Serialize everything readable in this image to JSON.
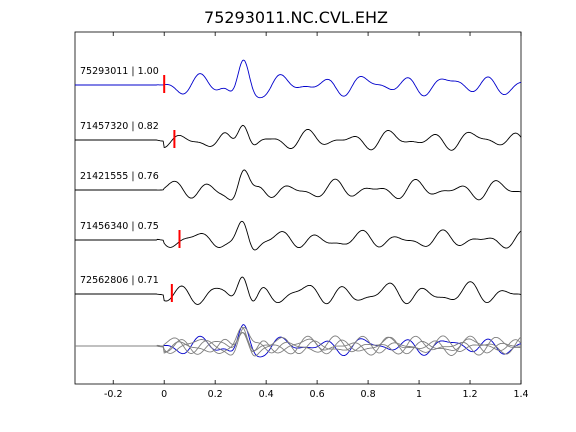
{
  "chart_data": {
    "type": "line",
    "title": "75293011.NC.CVL.EHZ",
    "xlabel": "",
    "ylabel": "",
    "xlim": [
      -0.35,
      1.4
    ],
    "xticks": [
      "-0.2",
      "0",
      "0.2",
      "0.4",
      "0.6",
      "0.8",
      "1",
      "1.2",
      "1.4"
    ],
    "xtick_values": [
      -0.2,
      0,
      0.2,
      0.4,
      0.6,
      0.8,
      1.0,
      1.2,
      1.4
    ],
    "grid": false,
    "colors": {
      "reference": "#0000cc",
      "trace": "#000000",
      "overlay": "#808080",
      "pick": "#ff0000"
    },
    "traces": [
      {
        "label": "75293011 | 1.00",
        "color": "#0000cc",
        "pick": 0.0
      },
      {
        "label": "71457320 | 0.82",
        "color": "#000000",
        "pick": 0.04
      },
      {
        "label": "21421555 | 0.76",
        "color": "#000000",
        "pick": null
      },
      {
        "label": "71456340 | 0.75",
        "color": "#000000",
        "pick": 0.06
      },
      {
        "label": "72562806 | 0.71",
        "color": "#000000",
        "pick": 0.03
      }
    ],
    "stack": {
      "label": "",
      "description_series": "overlay of all traces"
    }
  }
}
